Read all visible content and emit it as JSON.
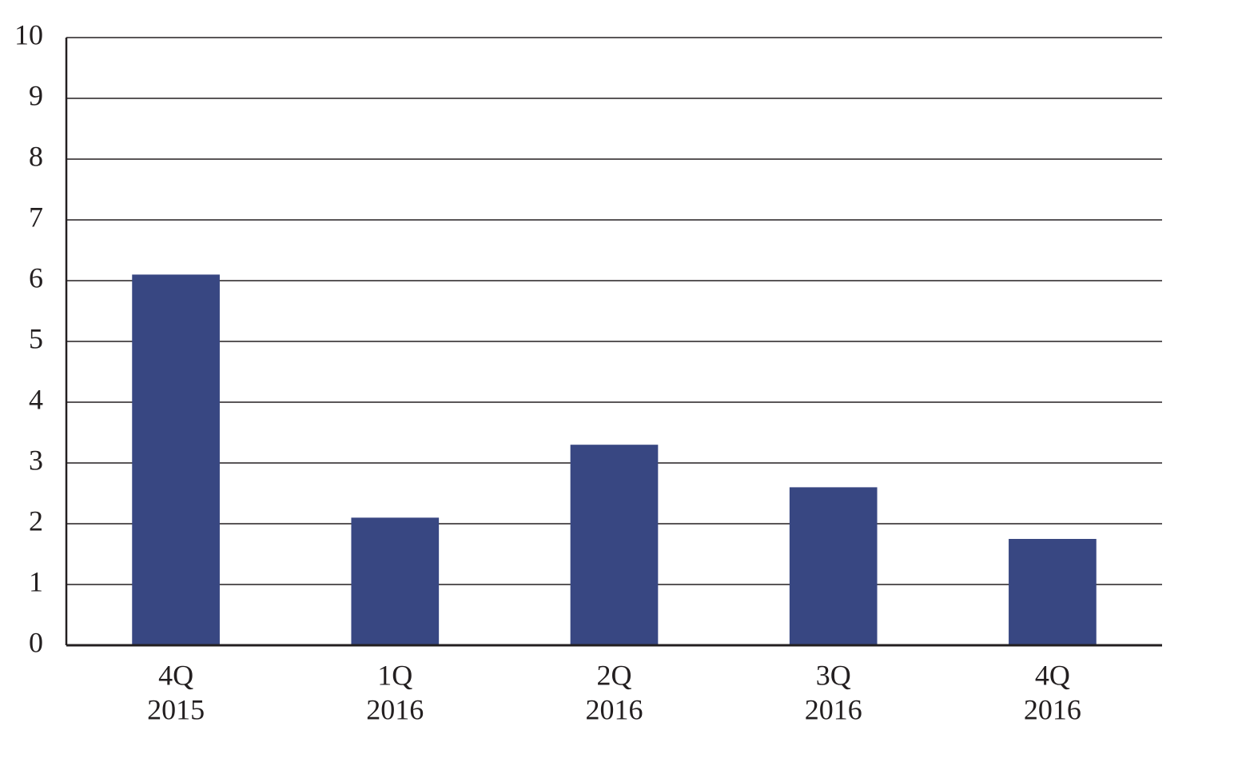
{
  "chart_data": {
    "type": "bar",
    "categories": [
      [
        "4Q",
        "2015"
      ],
      [
        "1Q",
        "2016"
      ],
      [
        "2Q",
        "2016"
      ],
      [
        "3Q",
        "2016"
      ],
      [
        "4Q",
        "2016"
      ]
    ],
    "values": [
      6.1,
      2.1,
      3.3,
      2.6,
      1.75
    ],
    "color": "#384782",
    "ylim": [
      0,
      10
    ],
    "yticks": [
      0,
      1,
      2,
      3,
      4,
      5,
      6,
      7,
      8,
      9,
      10
    ],
    "grid": true
  }
}
